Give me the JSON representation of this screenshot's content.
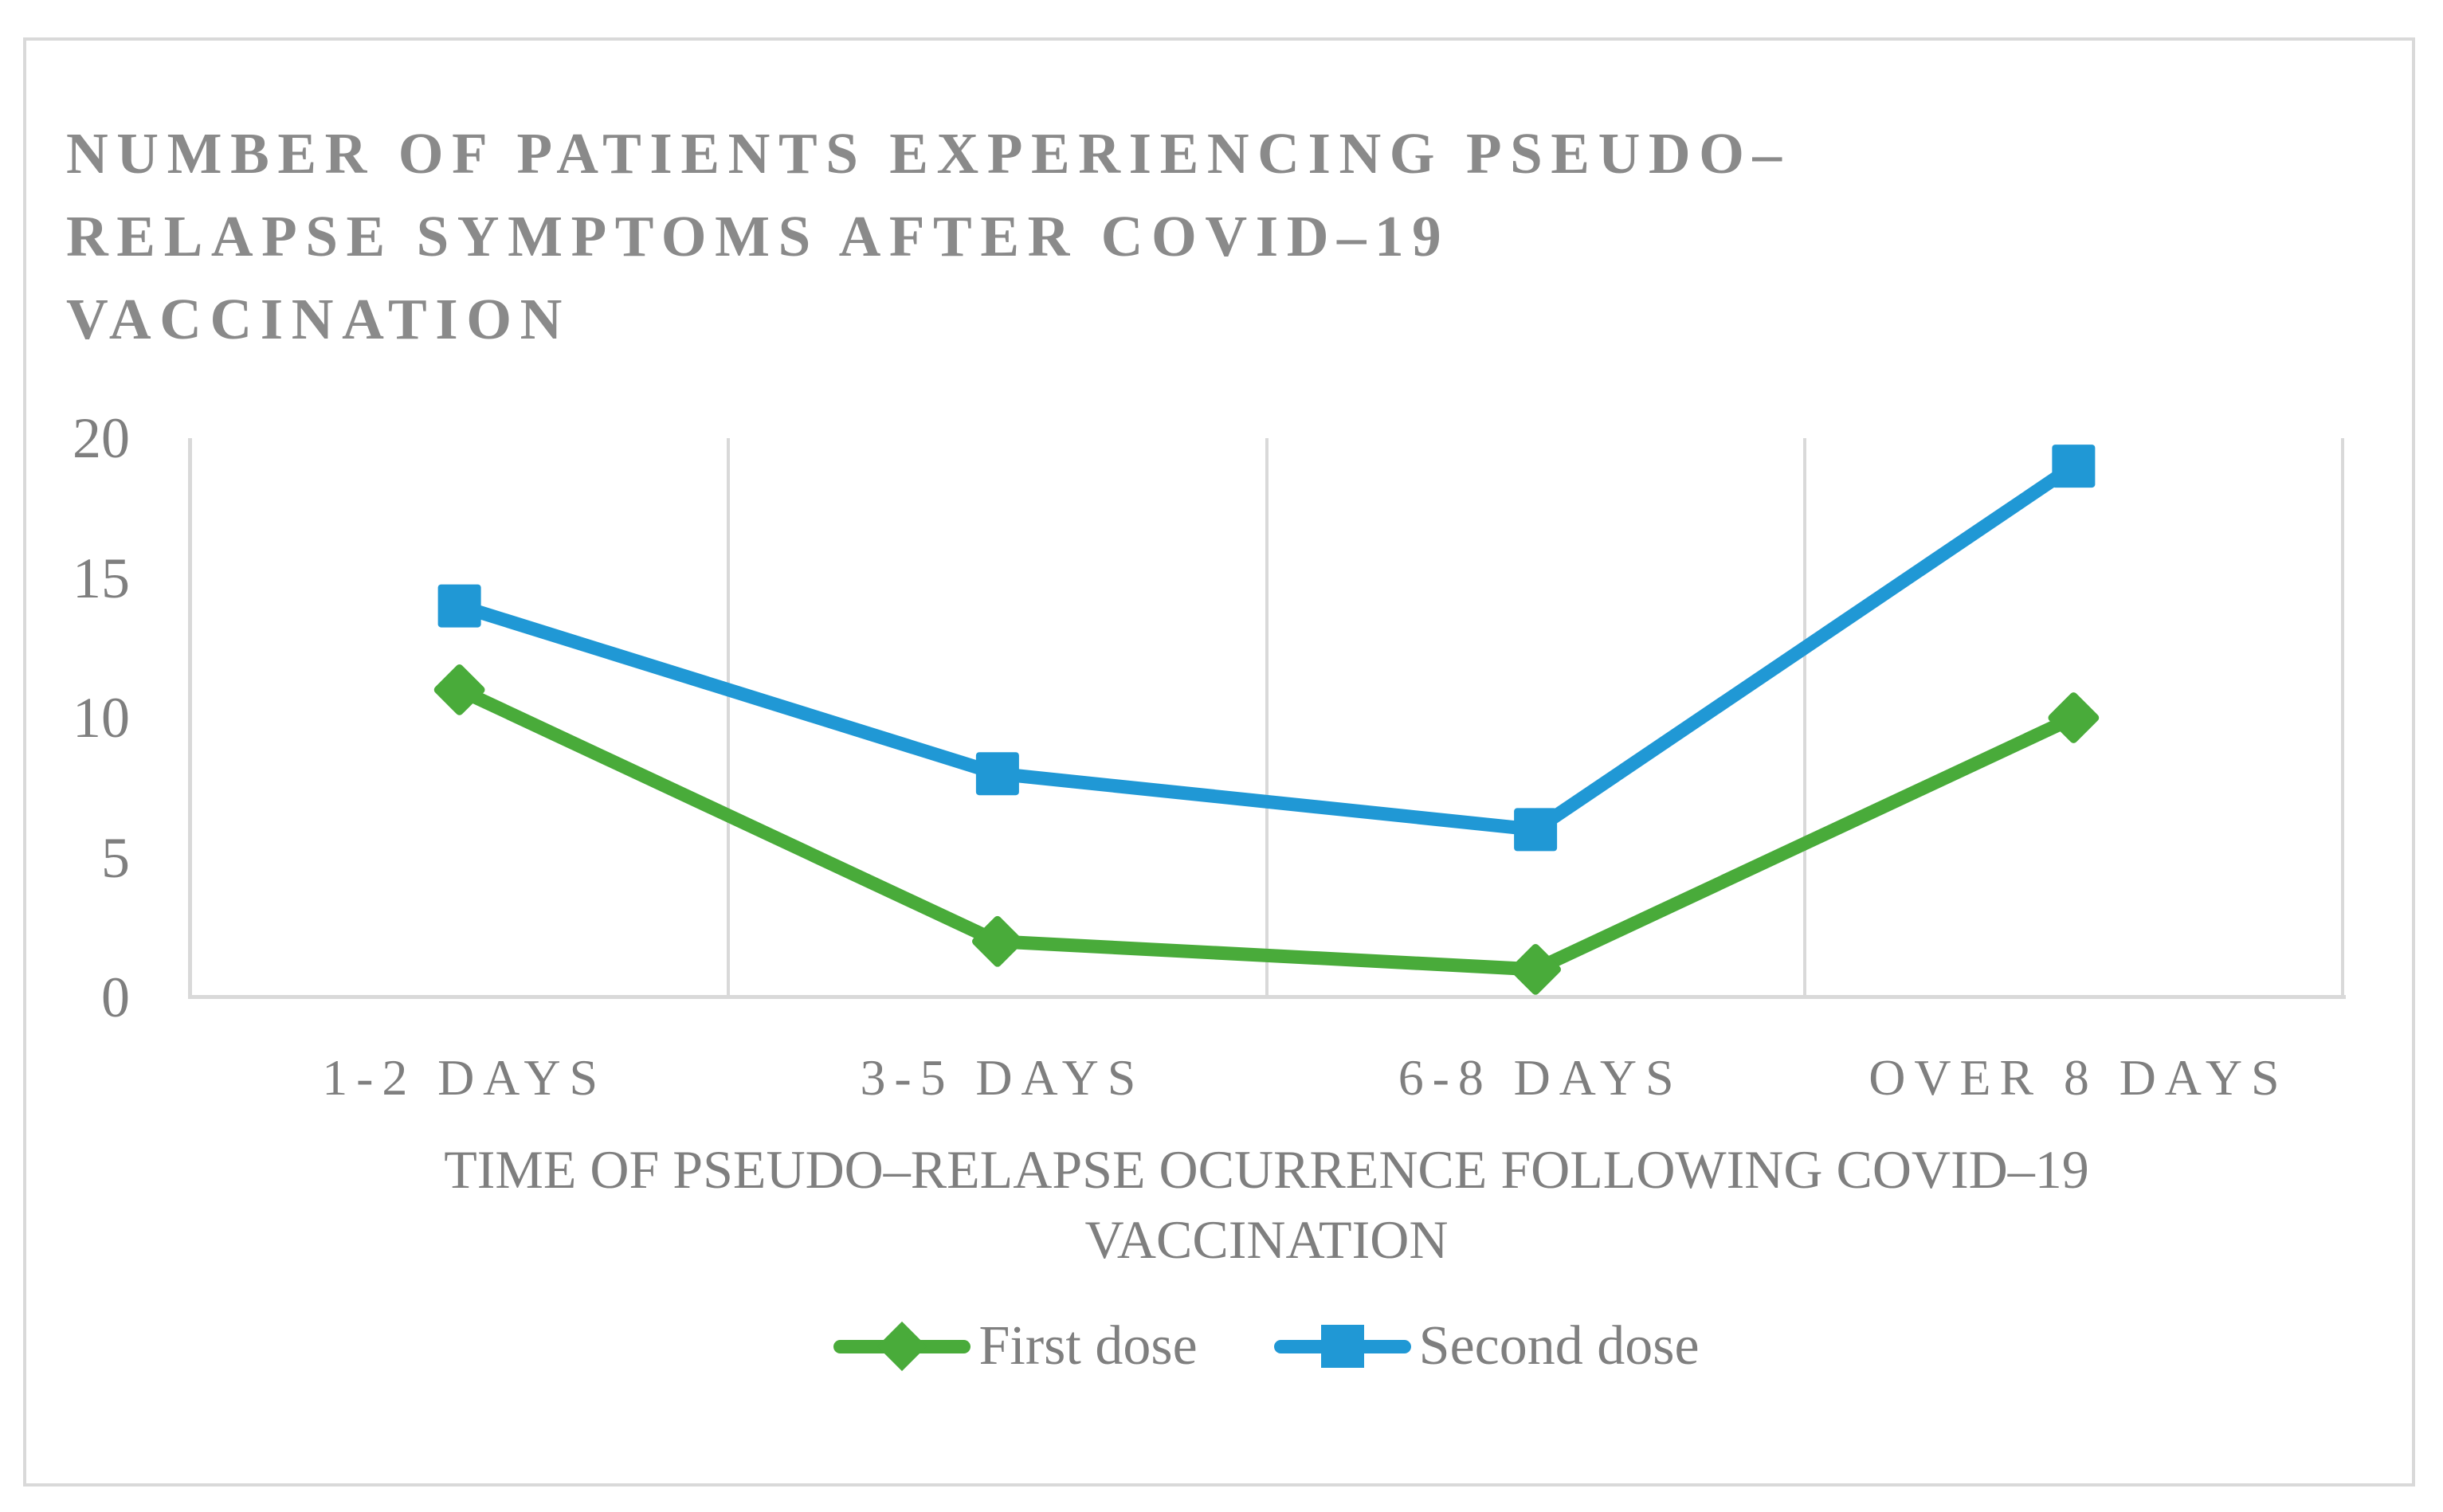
{
  "chart": {
    "title_lines": [
      "NUMBER OF PATIENTS EXPERIENCING PSEUDO–",
      "RELAPSE SYMPTOMS AFTER COVID–19",
      "VACCINATION"
    ],
    "xlabel_lines": [
      "TIME OF PSEUDO–RELAPSE OCURRENCE FOLLOWING COVID–19",
      "VACCINATION"
    ],
    "colors": {
      "first_dose_green": "#49AB3A",
      "second_dose_blue": "#2098D5",
      "gridline_gray": "#D9D9D9",
      "text_gray": "#7f7f7f",
      "title_gray": "#8a8a8a"
    }
  },
  "chart_data": {
    "type": "line",
    "title": "NUMBER OF PATIENTS EXPERIENCING PSEUDO–RELAPSE SYMPTOMS AFTER COVID–19 VACCINATION",
    "categories": [
      "1-2 DAYS",
      "3-5 DAYS",
      "6-8 DAYS",
      "OVER 8 DAYS"
    ],
    "series": [
      {
        "name": "First dose",
        "values": [
          11,
          2,
          1,
          10
        ],
        "color": "#49AB3A",
        "marker": "diamond"
      },
      {
        "name": "Second dose",
        "values": [
          14,
          8,
          6,
          19
        ],
        "color": "#2098D5",
        "marker": "square"
      }
    ],
    "xlabel": "TIME OF PSEUDO–RELAPSE OCURRENCE FOLLOWING COVID–19 VACCINATION",
    "ylabel": "",
    "ylim": [
      0,
      20
    ],
    "yticks": [
      20,
      15,
      10,
      5,
      0
    ],
    "grid": "vertical-only",
    "legend_position": "bottom"
  }
}
